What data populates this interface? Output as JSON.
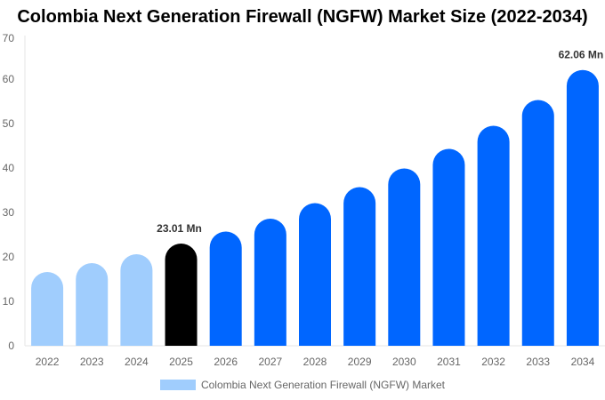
{
  "chart_data": {
    "type": "bar",
    "title": "Colombia Next Generation Firewall (NGFW) Market Size (2022-2034)",
    "categories": [
      "2022",
      "2023",
      "2024",
      "2025",
      "2026",
      "2027",
      "2028",
      "2029",
      "2030",
      "2031",
      "2032",
      "2033",
      "2034"
    ],
    "series": [
      {
        "name": "Colombia Next Generation Firewall (NGFW) Market",
        "values": [
          16.6,
          18.6,
          20.6,
          23.01,
          25.7,
          28.6,
          32.1,
          35.7,
          39.9,
          44.3,
          49.5,
          55.3,
          62.06
        ]
      }
    ],
    "data_labels": [
      {
        "category": "2025",
        "text": "23.01 Mn"
      },
      {
        "category": "2034",
        "text": "62.06 Mn"
      }
    ],
    "ylim": [
      0,
      70
    ],
    "yticks": [
      0,
      10,
      20,
      30,
      40,
      50,
      60,
      70
    ],
    "grid": false,
    "legend_position": "bottom",
    "colors": {
      "historical": "#a0cdfd",
      "base_year": "#000000",
      "forecast": "#0066ff"
    },
    "bar_color_groups": [
      "historical",
      "historical",
      "historical",
      "base_year",
      "forecast",
      "forecast",
      "forecast",
      "forecast",
      "forecast",
      "forecast",
      "forecast",
      "forecast",
      "forecast"
    ]
  }
}
